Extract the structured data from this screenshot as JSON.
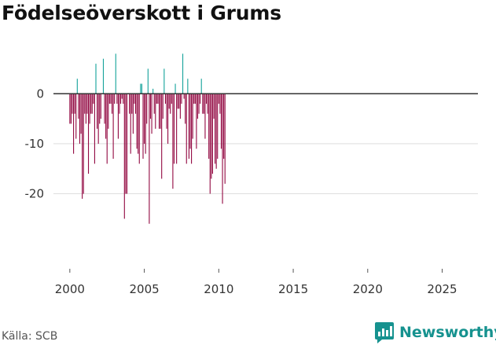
{
  "title": "Födelseöverskott i Grums",
  "source": "Källa: SCB",
  "brand": "Newsworthy",
  "colors": {
    "positive": "#16a39b",
    "negative": "#930a43",
    "grid": "#dedede",
    "zero_line": "#333333"
  },
  "chart_data": {
    "type": "bar",
    "title": "Födelseöverskott i Grums",
    "xlabel": "",
    "ylabel": "",
    "ylim": [
      -35,
      9
    ],
    "xlim": [
      1998.9,
      2027.4
    ],
    "yticks": [
      -20,
      -10,
      0
    ],
    "ytick_labels": [
      "-20",
      "-10",
      "0"
    ],
    "xticks": [
      2000,
      2005,
      2010,
      2015,
      2020,
      2025
    ],
    "xtick_labels": [
      "2000",
      "2005",
      "2010",
      "2015",
      "2020",
      "2025"
    ],
    "frequency": "monthly",
    "start": 2000.0,
    "step": 0.0833333,
    "values": [
      -6,
      -6,
      -4,
      -12,
      -4,
      -9,
      3,
      -5,
      -10,
      -8,
      -21,
      -20,
      -4,
      -6,
      -4,
      -16,
      -6,
      -4,
      -4,
      -2,
      -14,
      6,
      -7,
      -10,
      -6,
      -5,
      0,
      7,
      -6,
      -9,
      -14,
      -7,
      -2,
      -2,
      -4,
      -13,
      -2,
      8,
      -2,
      -9,
      -4,
      -2,
      -1,
      -2,
      -25,
      -20,
      -20,
      0,
      -4,
      -12,
      -4,
      -8,
      -2,
      -4,
      -11,
      -12,
      -14,
      2,
      2,
      -13,
      -10,
      -12,
      -6,
      5,
      -26,
      -5,
      -8,
      1,
      -4,
      -7,
      -2,
      -2,
      -7,
      -7,
      -17,
      -5,
      5,
      -2,
      -7,
      -10,
      -3,
      -4,
      -2,
      -19,
      -14,
      2,
      -14,
      -3,
      -3,
      -5,
      -2,
      8,
      -1,
      -6,
      -14,
      3,
      -13,
      -11,
      -14,
      -9,
      -2,
      -2,
      -11,
      -5,
      -4,
      -2,
      3,
      -4,
      -4,
      -9,
      -2,
      -4,
      -13,
      -20,
      -17,
      -16,
      -5,
      -14,
      -15,
      -13,
      -2,
      -4,
      -11,
      -22,
      -13,
      -18
    ]
  }
}
